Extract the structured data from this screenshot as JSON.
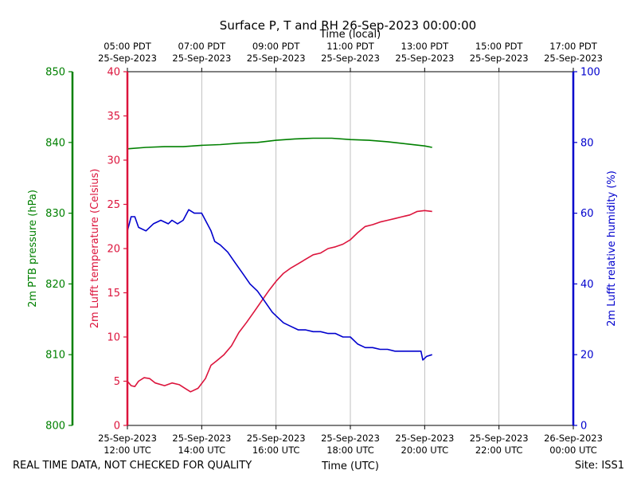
{
  "colors": {
    "pressure": "#008000",
    "temperature": "#dc143c",
    "humidity": "#0000cd",
    "grid": "#b0b0b0",
    "text": "#000000"
  },
  "chart_data": {
    "type": "line",
    "title": "Surface P, T and RH 26-Sep-2023 00:00:00",
    "xlabel_bottom": "Time (UTC)",
    "xlabel_top": "Time (local)",
    "footer_left": "REAL TIME DATA, NOT CHECKED FOR QUALITY",
    "footer_right": "Site: ISS1",
    "x_unit": "hours since 25-Sep-2023 12:00 UTC",
    "xlim": [
      0,
      12
    ],
    "grid": "vertical",
    "x_ticks": [
      {
        "x": 0,
        "bottom": [
          "25-Sep-2023",
          "12:00 UTC"
        ],
        "top": [
          "05:00 PDT",
          "25-Sep-2023"
        ]
      },
      {
        "x": 2,
        "bottom": [
          "25-Sep-2023",
          "14:00 UTC"
        ],
        "top": [
          "07:00 PDT",
          "25-Sep-2023"
        ]
      },
      {
        "x": 4,
        "bottom": [
          "25-Sep-2023",
          "16:00 UTC"
        ],
        "top": [
          "09:00 PDT",
          "25-Sep-2023"
        ]
      },
      {
        "x": 6,
        "bottom": [
          "25-Sep-2023",
          "18:00 UTC"
        ],
        "top": [
          "11:00 PDT",
          "25-Sep-2023"
        ]
      },
      {
        "x": 8,
        "bottom": [
          "25-Sep-2023",
          "20:00 UTC"
        ],
        "top": [
          "13:00 PDT",
          "25-Sep-2023"
        ]
      },
      {
        "x": 10,
        "bottom": [
          "25-Sep-2023",
          "22:00 UTC"
        ],
        "top": [
          "15:00 PDT",
          "25-Sep-2023"
        ]
      },
      {
        "x": 12,
        "bottom": [
          "26-Sep-2023",
          "00:00 UTC"
        ],
        "top": [
          "17:00 PDT",
          "25-Sep-2023"
        ]
      }
    ],
    "axes": {
      "pressure": {
        "label": "2m PTB pressure (hPa)",
        "ylim": [
          800,
          850
        ],
        "ticks": [
          800,
          810,
          820,
          830,
          840,
          850
        ],
        "side": "far-left"
      },
      "temperature": {
        "label": "2m Lufft temperature (Celsius)",
        "ylim": [
          0,
          40
        ],
        "ticks": [
          0,
          5,
          10,
          15,
          20,
          25,
          30,
          35,
          40
        ],
        "side": "left"
      },
      "humidity": {
        "label": "2m Lufft relative humidity (%)",
        "ylim": [
          0,
          100
        ],
        "ticks": [
          0,
          20,
          40,
          60,
          80,
          100
        ],
        "side": "right"
      }
    },
    "series": [
      {
        "axis": "pressure",
        "points": [
          [
            0,
            839.1
          ],
          [
            0.5,
            839.3
          ],
          [
            1.0,
            839.4
          ],
          [
            1.5,
            839.4
          ],
          [
            2.0,
            839.6
          ],
          [
            2.5,
            839.7
          ],
          [
            3.0,
            839.9
          ],
          [
            3.5,
            840.0
          ],
          [
            4.0,
            840.3
          ],
          [
            4.5,
            840.5
          ],
          [
            5.0,
            840.6
          ],
          [
            5.5,
            840.6
          ],
          [
            6.0,
            840.4
          ],
          [
            6.5,
            840.3
          ],
          [
            7.0,
            840.1
          ],
          [
            7.5,
            839.8
          ],
          [
            8.0,
            839.5
          ],
          [
            8.2,
            839.3
          ]
        ]
      },
      {
        "axis": "temperature",
        "points": [
          [
            0,
            5.0
          ],
          [
            0.1,
            4.5
          ],
          [
            0.2,
            4.4
          ],
          [
            0.3,
            5.0
          ],
          [
            0.45,
            5.4
          ],
          [
            0.6,
            5.3
          ],
          [
            0.75,
            4.8
          ],
          [
            1.0,
            4.5
          ],
          [
            1.2,
            4.8
          ],
          [
            1.4,
            4.6
          ],
          [
            1.55,
            4.2
          ],
          [
            1.7,
            3.8
          ],
          [
            1.9,
            4.2
          ],
          [
            2.1,
            5.3
          ],
          [
            2.25,
            6.8
          ],
          [
            2.4,
            7.3
          ],
          [
            2.6,
            8.0
          ],
          [
            2.8,
            9.0
          ],
          [
            3.0,
            10.5
          ],
          [
            3.2,
            11.6
          ],
          [
            3.4,
            12.8
          ],
          [
            3.6,
            14.0
          ],
          [
            3.8,
            15.2
          ],
          [
            4.0,
            16.3
          ],
          [
            4.2,
            17.2
          ],
          [
            4.4,
            17.8
          ],
          [
            4.6,
            18.3
          ],
          [
            4.8,
            18.8
          ],
          [
            5.0,
            19.3
          ],
          [
            5.2,
            19.5
          ],
          [
            5.4,
            20.0
          ],
          [
            5.6,
            20.2
          ],
          [
            5.8,
            20.5
          ],
          [
            6.0,
            21.0
          ],
          [
            6.2,
            21.8
          ],
          [
            6.4,
            22.5
          ],
          [
            6.6,
            22.7
          ],
          [
            6.8,
            23.0
          ],
          [
            7.0,
            23.2
          ],
          [
            7.2,
            23.4
          ],
          [
            7.4,
            23.6
          ],
          [
            7.6,
            23.8
          ],
          [
            7.8,
            24.2
          ],
          [
            8.0,
            24.3
          ],
          [
            8.2,
            24.2
          ]
        ]
      },
      {
        "axis": "humidity",
        "points": [
          [
            0,
            55
          ],
          [
            0.1,
            59
          ],
          [
            0.2,
            59
          ],
          [
            0.3,
            56
          ],
          [
            0.5,
            55
          ],
          [
            0.7,
            57
          ],
          [
            0.9,
            58
          ],
          [
            1.1,
            57
          ],
          [
            1.2,
            58
          ],
          [
            1.35,
            57
          ],
          [
            1.5,
            58
          ],
          [
            1.65,
            61
          ],
          [
            1.8,
            60
          ],
          [
            2.0,
            60
          ],
          [
            2.1,
            58
          ],
          [
            2.25,
            55
          ],
          [
            2.35,
            52
          ],
          [
            2.5,
            51
          ],
          [
            2.7,
            49
          ],
          [
            2.9,
            46
          ],
          [
            3.1,
            43
          ],
          [
            3.3,
            40
          ],
          [
            3.5,
            38
          ],
          [
            3.7,
            35
          ],
          [
            3.9,
            32
          ],
          [
            4.0,
            31
          ],
          [
            4.2,
            29
          ],
          [
            4.4,
            28
          ],
          [
            4.6,
            27
          ],
          [
            4.8,
            27
          ],
          [
            5.0,
            26.5
          ],
          [
            5.2,
            26.5
          ],
          [
            5.4,
            26
          ],
          [
            5.6,
            26
          ],
          [
            5.8,
            25
          ],
          [
            6.0,
            25
          ],
          [
            6.2,
            23
          ],
          [
            6.4,
            22
          ],
          [
            6.6,
            22
          ],
          [
            6.8,
            21.5
          ],
          [
            7.0,
            21.5
          ],
          [
            7.2,
            21
          ],
          [
            7.4,
            21
          ],
          [
            7.6,
            21
          ],
          [
            7.8,
            21
          ],
          [
            7.9,
            21
          ],
          [
            7.95,
            18.5
          ],
          [
            8.05,
            19.5
          ],
          [
            8.2,
            20
          ]
        ]
      }
    ]
  }
}
